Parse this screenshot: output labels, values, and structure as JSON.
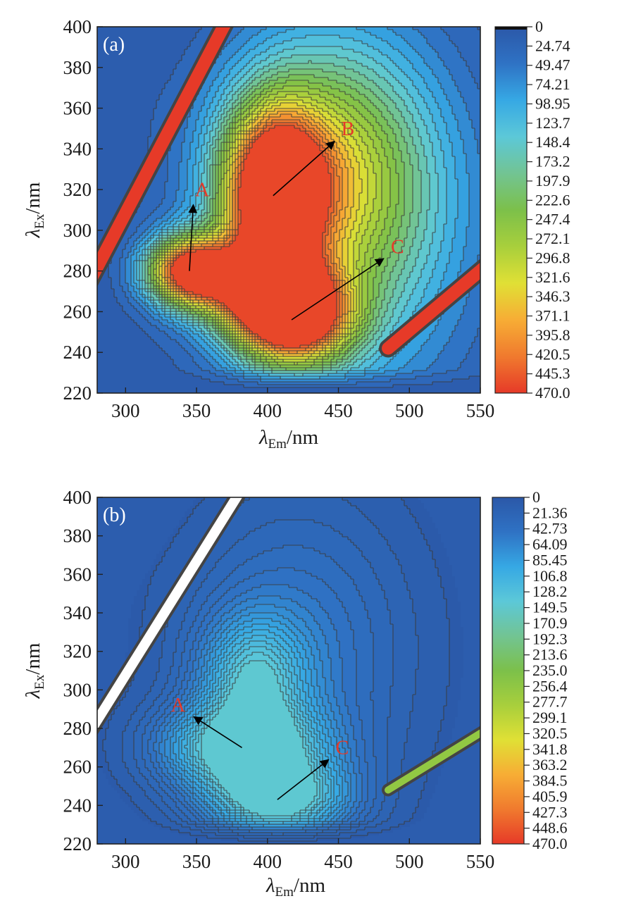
{
  "chart_data": [
    {
      "type": "heatmap",
      "panel_label": "(a)",
      "xlabel": "λEm/nm",
      "xlabel_main": "λ",
      "xlabel_sub": "Em",
      "xlabel_unit": "/nm",
      "ylabel_main": "λ",
      "ylabel_sub": "Ex",
      "ylabel_unit": "/nm",
      "xlim": [
        280,
        550
      ],
      "ylim": [
        220,
        400
      ],
      "x_ticks": [
        "300",
        "350",
        "400",
        "450",
        "500",
        "550"
      ],
      "y_ticks": [
        "220",
        "240",
        "260",
        "280",
        "300",
        "320",
        "340",
        "360",
        "380",
        "400"
      ],
      "colorbar": {
        "range": [
          0,
          470
        ],
        "labels": [
          "0",
          "24.74",
          "49.47",
          "74.21",
          "98.95",
          "123.7",
          "148.4",
          "173.2",
          "197.9",
          "222.6",
          "247.4",
          "272.1",
          "296.8",
          "321.6",
          "346.3",
          "371.1",
          "395.8",
          "420.5",
          "445.3",
          "470.0"
        ]
      },
      "peaks": [
        {
          "name": "A",
          "em": 345,
          "ex": 280,
          "label_em": 348,
          "label_ex": 316
        },
        {
          "name": "B",
          "em": 404,
          "ex": 317,
          "label_em": 451,
          "label_ex": 346
        },
        {
          "name": "C",
          "em": 417,
          "ex": 256,
          "label_em": 486,
          "label_ex": 288
        }
      ],
      "max_intensity": 470
    },
    {
      "type": "heatmap",
      "panel_label": "(b)",
      "xlabel": "λEm/nm",
      "xlabel_main": "λ",
      "xlabel_sub": "Em",
      "xlabel_unit": "/nm",
      "ylabel_main": "λ",
      "ylabel_sub": "Ex",
      "ylabel_unit": "/nm",
      "xlim": [
        280,
        550
      ],
      "ylim": [
        220,
        400
      ],
      "x_ticks": [
        "300",
        "350",
        "400",
        "450",
        "500",
        "550"
      ],
      "y_ticks": [
        "220",
        "240",
        "260",
        "280",
        "300",
        "320",
        "340",
        "360",
        "380",
        "400"
      ],
      "colorbar": {
        "range": [
          0,
          470
        ],
        "labels": [
          "0",
          "21.36",
          "42.73",
          "64.09",
          "85.45",
          "106.8",
          "128.2",
          "149.5",
          "170.9",
          "192.3",
          "213.6",
          "235.0",
          "256.4",
          "277.7",
          "299.1",
          "320.5",
          "341.8",
          "363.2",
          "384.5",
          "405.9",
          "427.3",
          "448.6",
          "470.0"
        ]
      },
      "peaks": [
        {
          "name": "A",
          "em": 382,
          "ex": 270,
          "label_em": 344,
          "label_ex": 288
        },
        {
          "name": "C",
          "em": 407,
          "ex": 243,
          "label_em": 447,
          "label_ex": 266
        }
      ],
      "max_intensity": 150
    }
  ],
  "colors": {
    "colormap": [
      "#2b58a8",
      "#2f72c4",
      "#36a8e4",
      "#5cc8d8",
      "#72c493",
      "#7cc04a",
      "#a8cf3c",
      "#e0e035",
      "#f7ad35",
      "#f07a2e",
      "#e63a28"
    ],
    "contour_line": "#3b3b3b",
    "scatter_band": "#e63a28",
    "peak_label": "#e53a2a"
  }
}
